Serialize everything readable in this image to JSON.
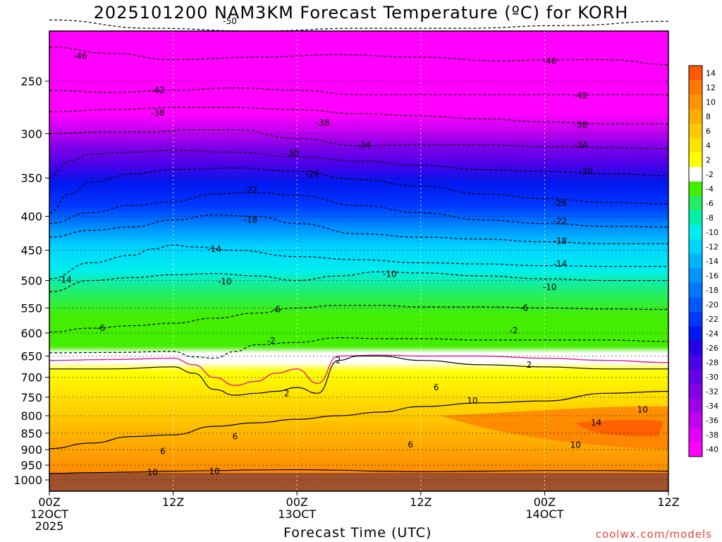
{
  "title": "2025101200 NAM3KM Forecast Temperature (ºC) for KORH",
  "footer": "coolwx.com/models",
  "chart_data": {
    "type": "heatmap",
    "title": "2025101200 NAM3KM Forecast Temperature (ºC) for KORH",
    "xlabel": "Forecast Time (UTC)",
    "ylabel": "",
    "x_ticks": [
      {
        "hour": 0,
        "lines": [
          "00Z",
          "12OCT",
          "2025"
        ]
      },
      {
        "hour": 12,
        "lines": [
          "12Z"
        ]
      },
      {
        "hour": 24,
        "lines": [
          "00Z",
          "13OCT"
        ]
      },
      {
        "hour": 36,
        "lines": [
          "12Z"
        ]
      },
      {
        "hour": 48,
        "lines": [
          "00Z",
          "14OCT"
        ]
      },
      {
        "hour": 60,
        "lines": [
          "12Z"
        ]
      }
    ],
    "y_ticks": [
      1000,
      950,
      900,
      850,
      800,
      750,
      700,
      650,
      600,
      550,
      500,
      450,
      400,
      350,
      300,
      250
    ],
    "xlim": [
      0,
      60
    ],
    "ylim": [
      1040,
      210
    ],
    "grid": true,
    "colorbar": {
      "levels": [
        14,
        12,
        10,
        8,
        6,
        4,
        2,
        -2,
        -4,
        -6,
        -8,
        -10,
        -12,
        -14,
        -16,
        -18,
        -20,
        -22,
        -24,
        -26,
        -28,
        -30,
        -32,
        -34,
        -36,
        -38,
        -40
      ],
      "colors": [
        "#ff5a00",
        "#ff7a00",
        "#ff9400",
        "#ffad00",
        "#ffc800",
        "#ffe300",
        "#ffff00",
        "#ffffff",
        "#44ee00",
        "#22ee66",
        "#00eeaa",
        "#00eeee",
        "#00d4ff",
        "#00b4ff",
        "#0094ff",
        "#0076ff",
        "#0058ff",
        "#0038ff",
        "#0018f0",
        "#2800e8",
        "#4a00e8",
        "#6400e8",
        "#8200e8",
        "#a000e8",
        "#c000f0",
        "#e000f5",
        "#ff00ff"
      ],
      "legend_position": "right"
    },
    "contours": [
      {
        "level": -50,
        "x": [
          0,
          10,
          20,
          30,
          40,
          50,
          60
        ],
        "p": [
          202,
          208,
          210,
          208,
          208,
          206,
          203
        ]
      },
      {
        "level": -46,
        "x": [
          0,
          6,
          12,
          20,
          28,
          36,
          44,
          48,
          54,
          60
        ],
        "p": [
          222,
          227,
          232,
          230,
          228,
          230,
          233,
          232,
          232,
          236
        ]
      },
      {
        "level": -42,
        "x": [
          0,
          6,
          12,
          18,
          24,
          30,
          36,
          42,
          48,
          54,
          60
        ],
        "p": [
          258,
          260,
          258,
          256,
          258,
          262,
          262,
          262,
          262,
          262,
          262
        ]
      },
      {
        "level": -38,
        "x": [
          0,
          6,
          12,
          18,
          24,
          30,
          36,
          42,
          48,
          54,
          60
        ],
        "p": [
          278,
          276,
          274,
          274,
          276,
          280,
          282,
          285,
          288,
          290,
          290
        ]
      },
      {
        "level": -34,
        "x": [
          0,
          6,
          10,
          14,
          18,
          24,
          30,
          36,
          42,
          48,
          54,
          60
        ],
        "p": [
          300,
          298,
          298,
          296,
          296,
          305,
          313,
          312,
          312,
          314,
          315,
          316
        ]
      },
      {
        "level": -30,
        "x": [
          0,
          2,
          4,
          8,
          12,
          18,
          24,
          30,
          36,
          42,
          48,
          54,
          60
        ],
        "p": [
          348,
          330,
          322,
          320,
          318,
          320,
          325,
          330,
          335,
          340,
          342,
          345,
          347
        ]
      },
      {
        "level": -26,
        "x": [
          0,
          2,
          4,
          8,
          12,
          18,
          24,
          30,
          36,
          42,
          48,
          54,
          60
        ],
        "p": [
          395,
          370,
          355,
          345,
          340,
          338,
          342,
          352,
          360,
          370,
          376,
          381,
          383
        ]
      },
      {
        "level": -22,
        "x": [
          0,
          4,
          8,
          12,
          16,
          20,
          24,
          30,
          36,
          42,
          48,
          54,
          60
        ],
        "p": [
          410,
          395,
          385,
          380,
          370,
          368,
          372,
          385,
          395,
          405,
          410,
          414,
          415
        ]
      },
      {
        "level": -18,
        "x": [
          0,
          4,
          8,
          12,
          16,
          20,
          24,
          30,
          36,
          42,
          48,
          54,
          60
        ],
        "p": [
          430,
          420,
          415,
          405,
          398,
          400,
          410,
          425,
          430,
          433,
          437,
          440,
          440
        ]
      },
      {
        "level": -14,
        "x": [
          0,
          4,
          8,
          10,
          12,
          14,
          18,
          24,
          30,
          36,
          42,
          48,
          54,
          60
        ],
        "p": [
          497,
          470,
          458,
          448,
          442,
          445,
          450,
          460,
          465,
          470,
          472,
          475,
          476,
          476
        ]
      },
      {
        "level": -10,
        "x": [
          0,
          4,
          8,
          12,
          16,
          20,
          24,
          28,
          32,
          36,
          42,
          48,
          54,
          60
        ],
        "p": [
          520,
          500,
          495,
          490,
          488,
          492,
          500,
          492,
          485,
          487,
          492,
          497,
          500,
          500
        ]
      },
      {
        "level": -6,
        "x": [
          0,
          4,
          8,
          12,
          16,
          20,
          24,
          28,
          32,
          36,
          42,
          48,
          54,
          60
        ],
        "p": [
          598,
          590,
          585,
          580,
          570,
          560,
          550,
          545,
          545,
          548,
          548,
          550,
          552,
          553
        ]
      },
      {
        "level": -2,
        "x": [
          0,
          6,
          12,
          14,
          16,
          18,
          20,
          24,
          28,
          32,
          36,
          42,
          48,
          54,
          60
        ],
        "p": [
          643,
          642,
          640,
          652,
          655,
          640,
          625,
          620,
          610,
          612,
          612,
          615,
          615,
          615,
          618
        ]
      },
      {
        "level": 0,
        "x": [
          0,
          6,
          12,
          14,
          16,
          18,
          20,
          22,
          24,
          26,
          28,
          32,
          36,
          42,
          48,
          54,
          60
        ],
        "p": [
          660,
          658,
          655,
          670,
          700,
          720,
          710,
          690,
          680,
          715,
          650,
          648,
          650,
          650,
          655,
          660,
          665
        ]
      },
      {
        "level": 2,
        "x": [
          0,
          6,
          12,
          14,
          16,
          18,
          20,
          22,
          24,
          26,
          28,
          30,
          32,
          36,
          42,
          48,
          54,
          60
        ],
        "p": [
          680,
          680,
          675,
          690,
          730,
          745,
          740,
          735,
          725,
          740,
          660,
          650,
          650,
          660,
          670,
          675,
          680,
          680
        ]
      },
      {
        "level": 6,
        "x": [
          0,
          4,
          8,
          12,
          16,
          20,
          24,
          28,
          32,
          36,
          42,
          48,
          54,
          60
        ],
        "p": [
          897,
          880,
          860,
          855,
          830,
          820,
          810,
          800,
          790,
          775,
          765,
          760,
          740,
          735
        ]
      },
      {
        "level": 10,
        "x": [
          0,
          4,
          8,
          12,
          16,
          20,
          24,
          28,
          32,
          36,
          42,
          48,
          54,
          60
        ],
        "p": [
          978,
          975,
          973,
          970,
          968,
          966,
          965,
          967,
          970,
          972,
          970,
          968,
          968,
          970
        ]
      }
    ]
  },
  "contour_labels": [
    {
      "text": "-50",
      "h": 17.5,
      "p": 203
    },
    {
      "text": "-46",
      "h": 3,
      "p": 229
    },
    {
      "text": "-46",
      "h": 48.5,
      "p": 233
    },
    {
      "text": "-42",
      "h": 10.5,
      "p": 258
    },
    {
      "text": "-42",
      "h": 51.5,
      "p": 263
    },
    {
      "text": "-38",
      "h": 10.5,
      "p": 279
    },
    {
      "text": "-38",
      "h": 26.5,
      "p": 289
    },
    {
      "text": "-38",
      "h": 51.5,
      "p": 291
    },
    {
      "text": "-34",
      "h": 30.5,
      "p": 312
    },
    {
      "text": "-34",
      "h": 51.5,
      "p": 312
    },
    {
      "text": "-30",
      "h": 23.5,
      "p": 321
    },
    {
      "text": "-30",
      "h": 52,
      "p": 342
    },
    {
      "text": "-26",
      "h": 25.5,
      "p": 345
    },
    {
      "text": "-26",
      "h": 49.5,
      "p": 382
    },
    {
      "text": "-22",
      "h": 19.5,
      "p": 365
    },
    {
      "text": "-22",
      "h": 49.5,
      "p": 407
    },
    {
      "text": "-18",
      "h": 19.5,
      "p": 405
    },
    {
      "text": "-18",
      "h": 49.5,
      "p": 436
    },
    {
      "text": "-14",
      "h": 1.5,
      "p": 499
    },
    {
      "text": "-14",
      "h": 16,
      "p": 448
    },
    {
      "text": "-14",
      "h": 49.5,
      "p": 472
    },
    {
      "text": "-10",
      "h": 17,
      "p": 502
    },
    {
      "text": "-10",
      "h": 33,
      "p": 489
    },
    {
      "text": "-10",
      "h": 48.5,
      "p": 512
    },
    {
      "text": "-6",
      "h": 5,
      "p": 590
    },
    {
      "text": "-6",
      "h": 22,
      "p": 553
    },
    {
      "text": "-6",
      "h": 46,
      "p": 550
    },
    {
      "text": "-2",
      "h": 21.5,
      "p": 617
    },
    {
      "text": "-2",
      "h": 45,
      "p": 595
    },
    {
      "text": "2",
      "h": 28,
      "p": 660
    },
    {
      "text": "2",
      "h": 46.5,
      "p": 670
    },
    {
      "text": "2",
      "h": 23,
      "p": 740
    },
    {
      "text": "6",
      "h": 37.5,
      "p": 725
    },
    {
      "text": "6",
      "h": 18,
      "p": 860
    },
    {
      "text": "6",
      "h": 11,
      "p": 905
    },
    {
      "text": "6",
      "h": 35,
      "p": 884
    },
    {
      "text": "10",
      "h": 41,
      "p": 760
    },
    {
      "text": "10",
      "h": 57.5,
      "p": 783
    },
    {
      "text": "10",
      "h": 51,
      "p": 886
    },
    {
      "text": "10",
      "h": 10,
      "p": 975
    },
    {
      "text": "10",
      "h": 16,
      "p": 971
    },
    {
      "text": "14",
      "h": 53,
      "p": 820
    }
  ]
}
